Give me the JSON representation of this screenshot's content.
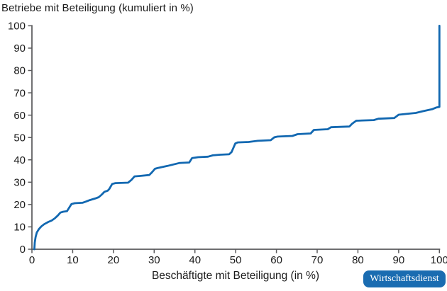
{
  "title": "Betriebe mit Beteiligung (kumuliert in %)",
  "x_axis_title": "Beschäftigte mit Beteiligung (in %)",
  "badge": {
    "label": "Wirtschaftsdienst",
    "bg_color": "#1a6cb1",
    "text_color": "#ffffff"
  },
  "colors": {
    "line": "#1268b1",
    "axis": "#59595b",
    "text": "#1a1a1a",
    "background": "#ffffff"
  },
  "chart_data": {
    "type": "line",
    "title": "Betriebe mit Beteiligung (kumuliert in %)",
    "xlabel": "Beschäftigte mit Beteiligung (in %)",
    "ylabel": "Betriebe mit Beteiligung (kumuliert in %)",
    "xlim": [
      0,
      100
    ],
    "ylim": [
      0,
      100
    ],
    "x_ticks": [
      0,
      10,
      20,
      30,
      40,
      50,
      60,
      70,
      80,
      90,
      100
    ],
    "y_ticks": [
      0,
      10,
      20,
      30,
      40,
      50,
      60,
      70,
      80,
      90,
      100
    ],
    "grid": false,
    "legend": "none",
    "series": [
      {
        "name": "Betriebe mit Beteiligung (kumuliert)",
        "color": "#1268b1",
        "points": [
          [
            0.6,
            0
          ],
          [
            0.7,
            3
          ],
          [
            0.9,
            5.5
          ],
          [
            1.2,
            7.5
          ],
          [
            1.7,
            9
          ],
          [
            2.3,
            10.2
          ],
          [
            3,
            11.2
          ],
          [
            4,
            12.2
          ],
          [
            4.8,
            12.8
          ],
          [
            5.6,
            13.8
          ],
          [
            6.3,
            15
          ],
          [
            7,
            16.4
          ],
          [
            7.7,
            16.8
          ],
          [
            8.6,
            17
          ],
          [
            9.1,
            18.5
          ],
          [
            9.7,
            20.2
          ],
          [
            10.5,
            20.6
          ],
          [
            12.4,
            20.8
          ],
          [
            13.2,
            21.3
          ],
          [
            14.2,
            22
          ],
          [
            15.5,
            22.7
          ],
          [
            16.4,
            23.3
          ],
          [
            17.1,
            24.4
          ],
          [
            17.8,
            25.7
          ],
          [
            18.6,
            26.2
          ],
          [
            19,
            27
          ],
          [
            19.7,
            29.2
          ],
          [
            20.5,
            29.6
          ],
          [
            23.6,
            29.8
          ],
          [
            24.4,
            31
          ],
          [
            25.2,
            32.6
          ],
          [
            26.5,
            32.8
          ],
          [
            28.8,
            33.2
          ],
          [
            29.5,
            34.5
          ],
          [
            30.2,
            36
          ],
          [
            30.8,
            36.3
          ],
          [
            33.3,
            37.3
          ],
          [
            36.2,
            38.6
          ],
          [
            38.6,
            38.8
          ],
          [
            39.3,
            40.8
          ],
          [
            40.8,
            41.2
          ],
          [
            43.2,
            41.4
          ],
          [
            44.4,
            42
          ],
          [
            46.2,
            42.3
          ],
          [
            48.4,
            42.5
          ],
          [
            49,
            43.5
          ],
          [
            49.9,
            47.3
          ],
          [
            50.5,
            47.8
          ],
          [
            53.2,
            48
          ],
          [
            55.4,
            48.5
          ],
          [
            58.6,
            48.8
          ],
          [
            59.5,
            50.1
          ],
          [
            60.3,
            50.4
          ],
          [
            63.9,
            50.7
          ],
          [
            65.2,
            51.5
          ],
          [
            68.4,
            51.8
          ],
          [
            69.2,
            53.4
          ],
          [
            72.6,
            53.7
          ],
          [
            73.4,
            54.6
          ],
          [
            77.9,
            54.9
          ],
          [
            78.6,
            56.2
          ],
          [
            79.6,
            57.5
          ],
          [
            83.9,
            57.8
          ],
          [
            85,
            58.4
          ],
          [
            88.9,
            58.7
          ],
          [
            90,
            60.2
          ],
          [
            94.2,
            61
          ],
          [
            96,
            61.8
          ],
          [
            98.3,
            62.7
          ],
          [
            99.2,
            63.4
          ],
          [
            100,
            63.7
          ],
          [
            100,
            100
          ]
        ]
      }
    ]
  }
}
